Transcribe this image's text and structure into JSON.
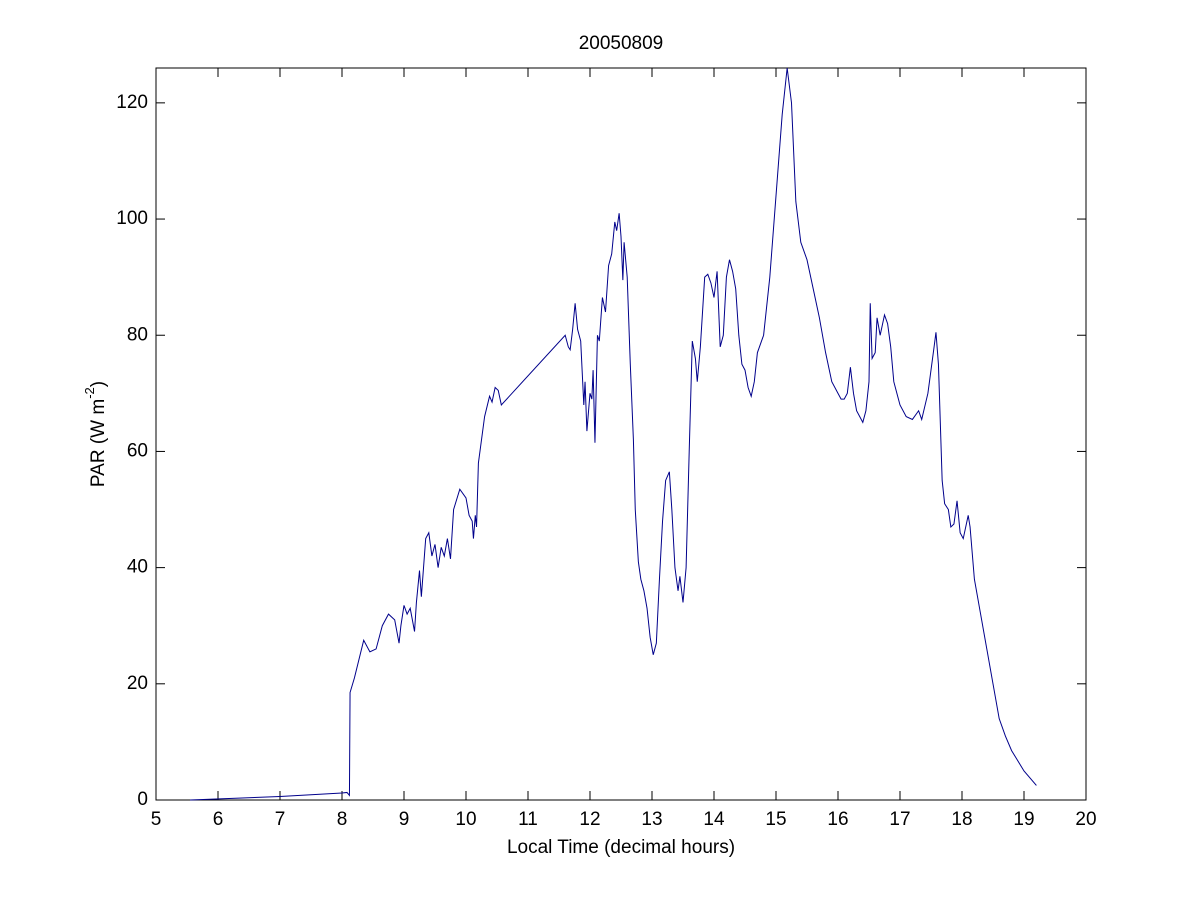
{
  "chart_data": {
    "type": "line",
    "title": "20050809",
    "xlabel": "Local Time (decimal hours)",
    "ylabel": {
      "text": "PAR (W m",
      "superscript": "-2",
      "suffix": ")"
    },
    "xlim": [
      5,
      20
    ],
    "ylim": [
      0,
      126
    ],
    "xticks": [
      5,
      6,
      7,
      8,
      9,
      10,
      11,
      12,
      13,
      14,
      15,
      16,
      17,
      18,
      19,
      20
    ],
    "yticks": [
      0,
      20,
      40,
      60,
      80,
      100,
      120
    ],
    "grid": false,
    "series": [
      {
        "color": "#00008b",
        "x": [
          5.55,
          7.0,
          8.0,
          8.08,
          8.12,
          8.13,
          8.2,
          8.35,
          8.45,
          8.55,
          8.65,
          8.75,
          8.85,
          8.92,
          8.95,
          9.0,
          9.05,
          9.1,
          9.17,
          9.2,
          9.25,
          9.28,
          9.35,
          9.4,
          9.45,
          9.5,
          9.55,
          9.6,
          9.65,
          9.7,
          9.75,
          9.8,
          9.9,
          10.0,
          10.05,
          10.1,
          10.12,
          10.15,
          10.17,
          10.2,
          10.3,
          10.38,
          10.42,
          10.47,
          10.52,
          10.57,
          11.6,
          11.65,
          11.68,
          11.72,
          11.76,
          11.8,
          11.85,
          11.9,
          11.92,
          11.95,
          12.0,
          12.03,
          12.05,
          12.08,
          12.12,
          12.15,
          12.2,
          12.25,
          12.3,
          12.35,
          12.4,
          12.43,
          12.47,
          12.5,
          12.53,
          12.55,
          12.6,
          12.65,
          12.7,
          12.73,
          12.78,
          12.82,
          12.87,
          12.92,
          12.97,
          13.02,
          13.07,
          13.12,
          13.17,
          13.22,
          13.28,
          13.32,
          13.37,
          13.42,
          13.45,
          13.5,
          13.55,
          13.6,
          13.65,
          13.7,
          13.73,
          13.78,
          13.85,
          13.9,
          13.95,
          14.0,
          14.05,
          14.1,
          14.15,
          14.2,
          14.25,
          14.3,
          14.35,
          14.4,
          14.45,
          14.5,
          14.55,
          14.6,
          14.65,
          14.7,
          14.8,
          14.9,
          15.0,
          15.1,
          15.18,
          15.25,
          15.32,
          15.4,
          15.5,
          15.6,
          15.7,
          15.8,
          15.9,
          16.0,
          16.05,
          16.1,
          16.15,
          16.2,
          16.25,
          16.3,
          16.4,
          16.45,
          16.5,
          16.52,
          16.55,
          16.6,
          16.63,
          16.68,
          16.75,
          16.8,
          16.85,
          16.9,
          16.95,
          17.0,
          17.1,
          17.2,
          17.3,
          17.35,
          17.45,
          17.55,
          17.58,
          17.62,
          17.68,
          17.72,
          17.78,
          17.82,
          17.87,
          17.92,
          17.97,
          18.02,
          18.1,
          18.13,
          18.2,
          18.3,
          18.4,
          18.5,
          18.6,
          18.7,
          18.8,
          19.0,
          19.2
        ],
        "values": [
          0,
          0.6,
          1.2,
          1.3,
          0.8,
          18.5,
          21,
          27.5,
          25.5,
          26,
          30,
          32,
          31,
          27,
          30,
          33.5,
          32,
          33,
          29,
          34,
          39.5,
          35,
          45,
          46,
          42,
          44,
          40,
          43.5,
          42,
          45,
          41.5,
          50,
          53.5,
          52,
          49,
          48,
          45,
          49,
          47,
          58,
          66,
          69.5,
          68.5,
          71,
          70.5,
          68,
          80,
          78,
          77.5,
          81,
          85.5,
          81,
          79,
          68,
          72,
          63.5,
          70,
          69,
          74,
          61.5,
          80,
          79,
          86.5,
          84,
          92,
          94,
          99.5,
          98,
          101,
          97,
          89.5,
          96,
          90,
          75,
          62,
          50,
          41,
          38,
          36,
          33,
          28,
          25,
          27,
          38,
          48,
          55,
          56.5,
          50,
          40,
          36,
          38.5,
          34,
          40,
          60,
          79,
          76,
          72,
          78,
          90,
          90.5,
          89,
          86.5,
          91,
          78,
          80,
          90,
          93,
          91,
          88,
          80,
          75,
          74,
          71,
          69.5,
          72,
          77,
          80,
          90,
          104,
          118,
          126,
          120,
          103,
          96,
          93,
          88,
          83,
          77,
          72,
          70,
          69,
          69,
          70,
          74.5,
          70,
          67,
          65,
          67,
          72,
          85.5,
          76,
          77,
          83,
          80,
          83.5,
          82,
          78,
          72,
          70,
          68,
          66,
          65.5,
          67,
          65.5,
          70,
          78,
          80.5,
          75,
          55,
          51,
          50,
          47,
          47.5,
          51.5,
          46,
          45,
          49,
          47,
          38,
          32,
          26,
          20,
          14,
          11,
          8.5,
          5,
          2.5
        ]
      }
    ]
  }
}
